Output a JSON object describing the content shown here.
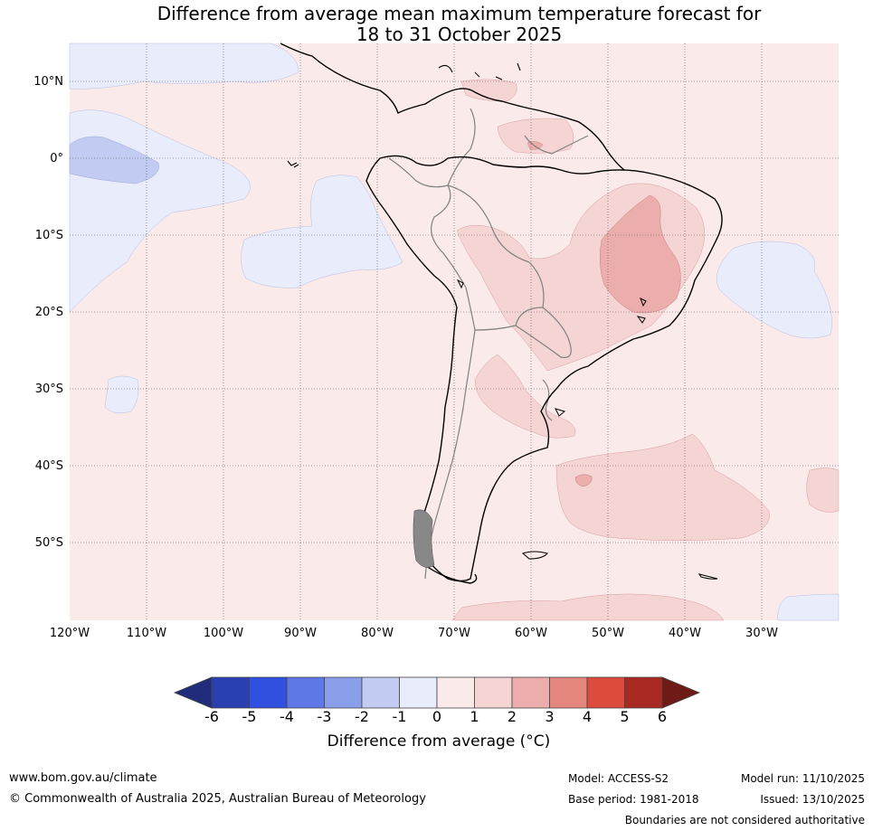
{
  "title_line1": "Difference from average mean maximum temperature forecast for",
  "title_line2": "18 to 31 October 2025",
  "lat_labels": [
    "10°N",
    "0°",
    "10°S",
    "20°S",
    "30°S",
    "40°S",
    "50°S"
  ],
  "lon_labels": [
    "120°W",
    "110°W",
    "100°W",
    "90°W",
    "80°W",
    "70°W",
    "60°W",
    "50°W",
    "40°W",
    "30°W"
  ],
  "colorbar": {
    "ticks": [
      "-6",
      "-5",
      "-4",
      "-3",
      "-2",
      "-1",
      "0",
      "1",
      "2",
      "3",
      "4",
      "5",
      "6"
    ],
    "colors": [
      "#1f2d7a",
      "#2a3fb0",
      "#3050e0",
      "#5e78e6",
      "#8a9ee9",
      "#c2cbf2",
      "#e9ecfb",
      "#fbeaea",
      "#f5d4d4",
      "#ecaeac",
      "#e6877f",
      "#dc4b3e",
      "#a82a22",
      "#6e1a16"
    ],
    "label": "Difference from average (°C)"
  },
  "footer": {
    "url": "www.bom.gov.au/climate",
    "copyright": "© Commonwealth of Australia 2025, Australian Bureau of Meteorology",
    "model": "Model: ACCESS-S2",
    "base_period": "Base period: 1981-2018",
    "model_run": "Model run: 11/10/2025",
    "issued": "Issued: 13/10/2025",
    "disclaimer": "Boundaries are not considered authoritative"
  }
}
